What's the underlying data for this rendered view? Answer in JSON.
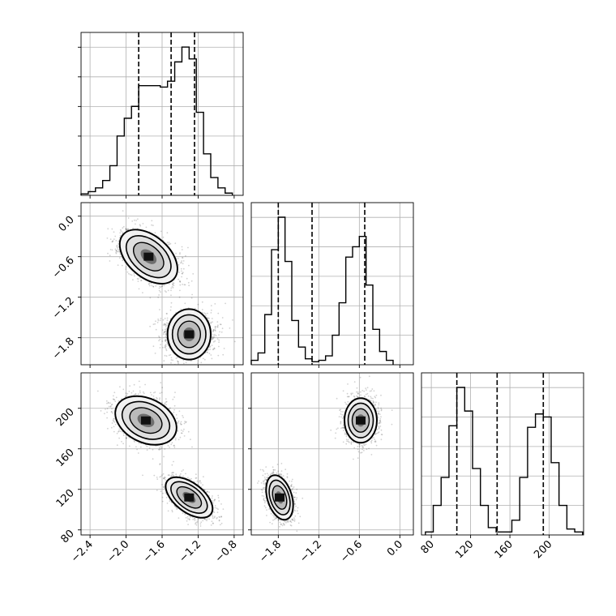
{
  "chart_data": {
    "type": "corner",
    "grid": true,
    "panels": [
      {
        "id": "hist-p1",
        "type": "histogram",
        "xlim": [
          -2.5,
          -0.7
        ],
        "quantile_lines": [
          -1.86,
          -1.5,
          -1.24
        ],
        "bins": [
          {
            "x": -2.46,
            "count": 0.01
          },
          {
            "x": -2.38,
            "count": 0.025
          },
          {
            "x": -2.3,
            "count": 0.05
          },
          {
            "x": -2.22,
            "count": 0.1
          },
          {
            "x": -2.14,
            "count": 0.2
          },
          {
            "x": -2.06,
            "count": 0.4
          },
          {
            "x": -1.98,
            "count": 0.52
          },
          {
            "x": -1.9,
            "count": 0.6
          },
          {
            "x": -1.82,
            "count": 0.74
          },
          {
            "x": -1.74,
            "count": 0.74
          },
          {
            "x": -1.66,
            "count": 0.74
          },
          {
            "x": -1.58,
            "count": 0.73
          },
          {
            "x": -1.5,
            "count": 0.77
          },
          {
            "x": -1.42,
            "count": 0.9
          },
          {
            "x": -1.34,
            "count": 1.0
          },
          {
            "x": -1.26,
            "count": 0.92
          },
          {
            "x": -1.18,
            "count": 0.56
          },
          {
            "x": -1.1,
            "count": 0.28
          },
          {
            "x": -1.02,
            "count": 0.12
          },
          {
            "x": -0.94,
            "count": 0.05
          },
          {
            "x": -0.86,
            "count": 0.015
          }
        ]
      },
      {
        "id": "hist-p2",
        "type": "histogram",
        "xlim": [
          -2.2,
          0.2
        ],
        "quantile_lines": [
          -1.8,
          -1.3,
          -0.52
        ],
        "bins": [
          {
            "x": -2.15,
            "count": 0.03
          },
          {
            "x": -2.05,
            "count": 0.08
          },
          {
            "x": -1.95,
            "count": 0.34
          },
          {
            "x": -1.85,
            "count": 0.78
          },
          {
            "x": -1.75,
            "count": 1.0
          },
          {
            "x": -1.65,
            "count": 0.7
          },
          {
            "x": -1.55,
            "count": 0.3
          },
          {
            "x": -1.45,
            "count": 0.12
          },
          {
            "x": -1.35,
            "count": 0.04
          },
          {
            "x": -1.25,
            "count": 0.02
          },
          {
            "x": -1.15,
            "count": 0.03
          },
          {
            "x": -1.05,
            "count": 0.06
          },
          {
            "x": -0.95,
            "count": 0.2
          },
          {
            "x": -0.85,
            "count": 0.42
          },
          {
            "x": -0.75,
            "count": 0.73
          },
          {
            "x": -0.65,
            "count": 0.8
          },
          {
            "x": -0.55,
            "count": 0.87
          },
          {
            "x": -0.45,
            "count": 0.54
          },
          {
            "x": -0.35,
            "count": 0.24
          },
          {
            "x": -0.25,
            "count": 0.09
          },
          {
            "x": -0.15,
            "count": 0.03
          }
        ]
      },
      {
        "id": "hist-p3",
        "type": "histogram",
        "xlim": [
          70,
          235
        ],
        "quantile_lines": [
          106,
          147,
          194
        ],
        "bins": [
          {
            "x": 78,
            "count": 0.02
          },
          {
            "x": 86,
            "count": 0.2
          },
          {
            "x": 94,
            "count": 0.39
          },
          {
            "x": 102,
            "count": 0.74
          },
          {
            "x": 110,
            "count": 1.0
          },
          {
            "x": 118,
            "count": 0.84
          },
          {
            "x": 126,
            "count": 0.45
          },
          {
            "x": 134,
            "count": 0.2
          },
          {
            "x": 142,
            "count": 0.05
          },
          {
            "x": 150,
            "count": 0.02
          },
          {
            "x": 158,
            "count": 0.02
          },
          {
            "x": 166,
            "count": 0.1
          },
          {
            "x": 174,
            "count": 0.39
          },
          {
            "x": 182,
            "count": 0.73
          },
          {
            "x": 190,
            "count": 0.82
          },
          {
            "x": 198,
            "count": 0.8
          },
          {
            "x": 206,
            "count": 0.49
          },
          {
            "x": 214,
            "count": 0.2
          },
          {
            "x": 222,
            "count": 0.04
          },
          {
            "x": 230,
            "count": 0.02
          }
        ]
      },
      {
        "id": "scatter-p1-p2",
        "type": "density",
        "xlim": [
          -2.5,
          -0.7
        ],
        "ylim": [
          -2.2,
          0.2
        ],
        "modes": [
          {
            "cx": -1.75,
            "cy": -0.6,
            "sx": 0.16,
            "sy": 0.2,
            "rho": -0.45
          },
          {
            "cx": -1.3,
            "cy": -1.75,
            "sx": 0.14,
            "sy": 0.16,
            "rho": 0.0
          }
        ]
      },
      {
        "id": "scatter-p1-p3",
        "type": "density",
        "xlim": [
          -2.5,
          -0.7
        ],
        "ylim": [
          75,
          235
        ],
        "modes": [
          {
            "cx": -1.78,
            "cy": 188,
            "sx": 0.17,
            "sy": 12,
            "rho": -0.3
          },
          {
            "cx": -1.3,
            "cy": 112,
            "sx": 0.13,
            "sy": 10,
            "rho": -0.55
          }
        ]
      },
      {
        "id": "scatter-p2-p3",
        "type": "density",
        "xlim": [
          -2.2,
          0.2
        ],
        "ylim": [
          75,
          235
        ],
        "modes": [
          {
            "cx": -1.78,
            "cy": 112,
            "sx": 0.1,
            "sy": 11,
            "rho": -0.35
          },
          {
            "cx": -0.58,
            "cy": 188,
            "sx": 0.12,
            "sy": 11,
            "rho": 0.0
          }
        ]
      }
    ],
    "tick_labels": {
      "p1": [
        "−2.4",
        "−2.0",
        "−1.6",
        "−1.2",
        "−0.8"
      ],
      "p2": [
        "−1.8",
        "−1.2",
        "−0.6",
        "0.0"
      ],
      "p3": [
        "80",
        "120",
        "160",
        "200"
      ]
    },
    "tick_values": {
      "p1": [
        -2.4,
        -2.0,
        -1.6,
        -1.2,
        -0.8
      ],
      "p2": [
        -1.8,
        -1.2,
        -0.6,
        0.0
      ],
      "p3": [
        80,
        120,
        160,
        200
      ]
    }
  }
}
